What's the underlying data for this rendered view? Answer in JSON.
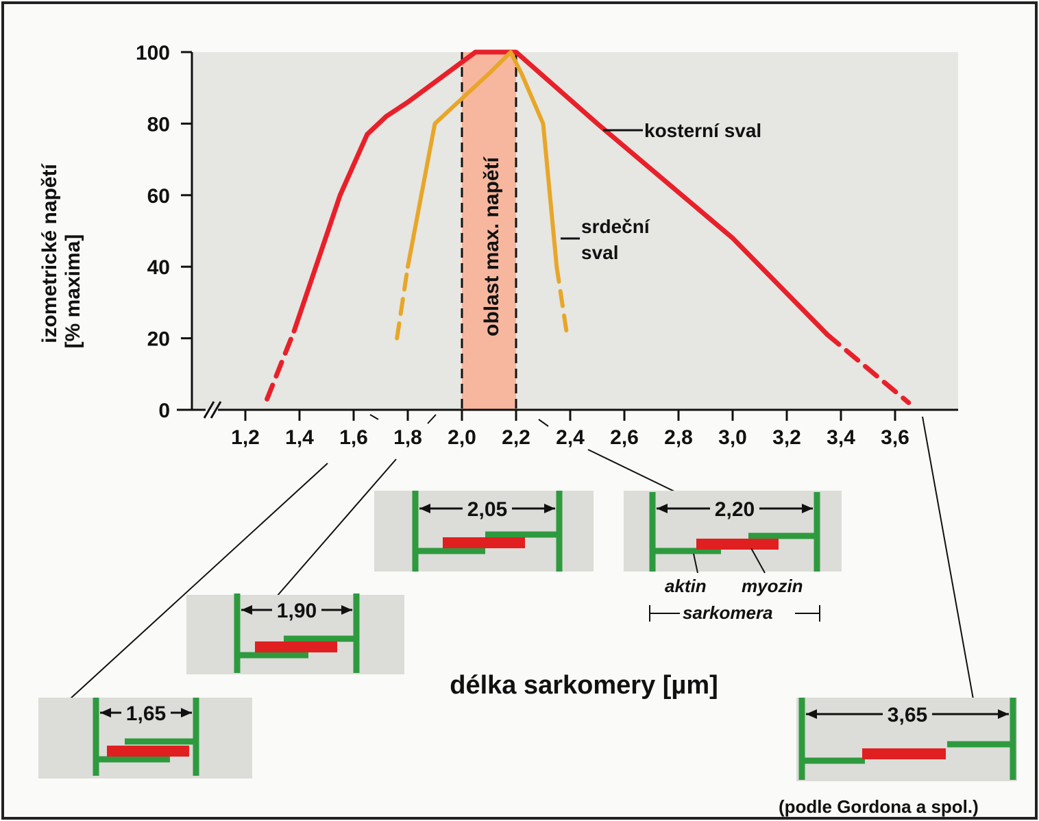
{
  "chart_data": {
    "type": "line",
    "title": "",
    "xlabel": "délka sarkomery [µm]",
    "ylabel_line1": "izometrické napětí",
    "ylabel_line2": "[% maxima]",
    "xlim": [
      1.0,
      3.8
    ],
    "ylim": [
      0,
      100
    ],
    "x_ticks": [
      "1,2",
      "1,4",
      "1,6",
      "1,8",
      "2,0",
      "2,2",
      "2,4",
      "2,6",
      "2,8",
      "3,0",
      "3,2",
      "3,4",
      "3,6"
    ],
    "x_tick_values": [
      1.2,
      1.4,
      1.6,
      1.8,
      2.0,
      2.2,
      2.4,
      2.6,
      2.8,
      3.0,
      3.2,
      3.4,
      3.6
    ],
    "y_ticks": [
      "0",
      "20",
      "40",
      "60",
      "80",
      "100"
    ],
    "y_tick_values": [
      0,
      20,
      40,
      60,
      80,
      100
    ],
    "axis_break": true,
    "grid": false,
    "colors": {
      "skeletal": "#e8202a",
      "cardiac": "#e8a628",
      "band": "#f7b79e",
      "actin": "#2e9a3e",
      "myosin": "#e02020",
      "plot_bg": "#e6e6e2"
    },
    "series": [
      {
        "name": "kosterní sval",
        "color": "#e8202a",
        "solid": {
          "x": [
            1.38,
            1.55,
            1.65,
            1.72,
            1.8,
            2.05,
            2.2,
            2.5,
            3.0,
            3.35
          ],
          "y": [
            22,
            60,
            77,
            82,
            86,
            100,
            100,
            80,
            48,
            21
          ]
        },
        "dashed_low": {
          "x": [
            1.28,
            1.38
          ],
          "y": [
            3,
            22
          ]
        },
        "dashed_high": {
          "x": [
            3.35,
            3.65
          ],
          "y": [
            21,
            2
          ]
        }
      },
      {
        "name": "srdeční sval",
        "color": "#e8a628",
        "solid": {
          "x": [
            1.8,
            1.9,
            2.0,
            2.1,
            2.18,
            2.22,
            2.3,
            2.35
          ],
          "y": [
            40,
            80,
            87,
            94,
            100,
            94,
            80,
            40
          ]
        },
        "dashed_low": {
          "x": [
            1.76,
            1.8
          ],
          "y": [
            20,
            40
          ]
        },
        "dashed_high": {
          "x": [
            2.35,
            2.39
          ],
          "y": [
            40,
            20
          ]
        }
      }
    ],
    "band": {
      "x0": 2.0,
      "x1": 2.2,
      "label": "oblast max. napětí"
    },
    "annotations": {
      "skeletal_label": "kosterní sval",
      "cardiac_label_line1": "srdeční",
      "cardiac_label_line2": "sval"
    },
    "sarcomeres": [
      {
        "length_label": "1,65",
        "x_value": 1.65
      },
      {
        "length_label": "1,90",
        "x_value": 1.9
      },
      {
        "length_label": "2,05",
        "x_value": 2.05
      },
      {
        "length_label": "2,20",
        "x_value": 2.2
      },
      {
        "length_label": "3,65",
        "x_value": 3.65
      }
    ],
    "legend_terms": {
      "actin": "aktin",
      "myosin": "myozin",
      "sarcomere": "sarkomera"
    },
    "source": "(podle Gordona a spol.)"
  }
}
